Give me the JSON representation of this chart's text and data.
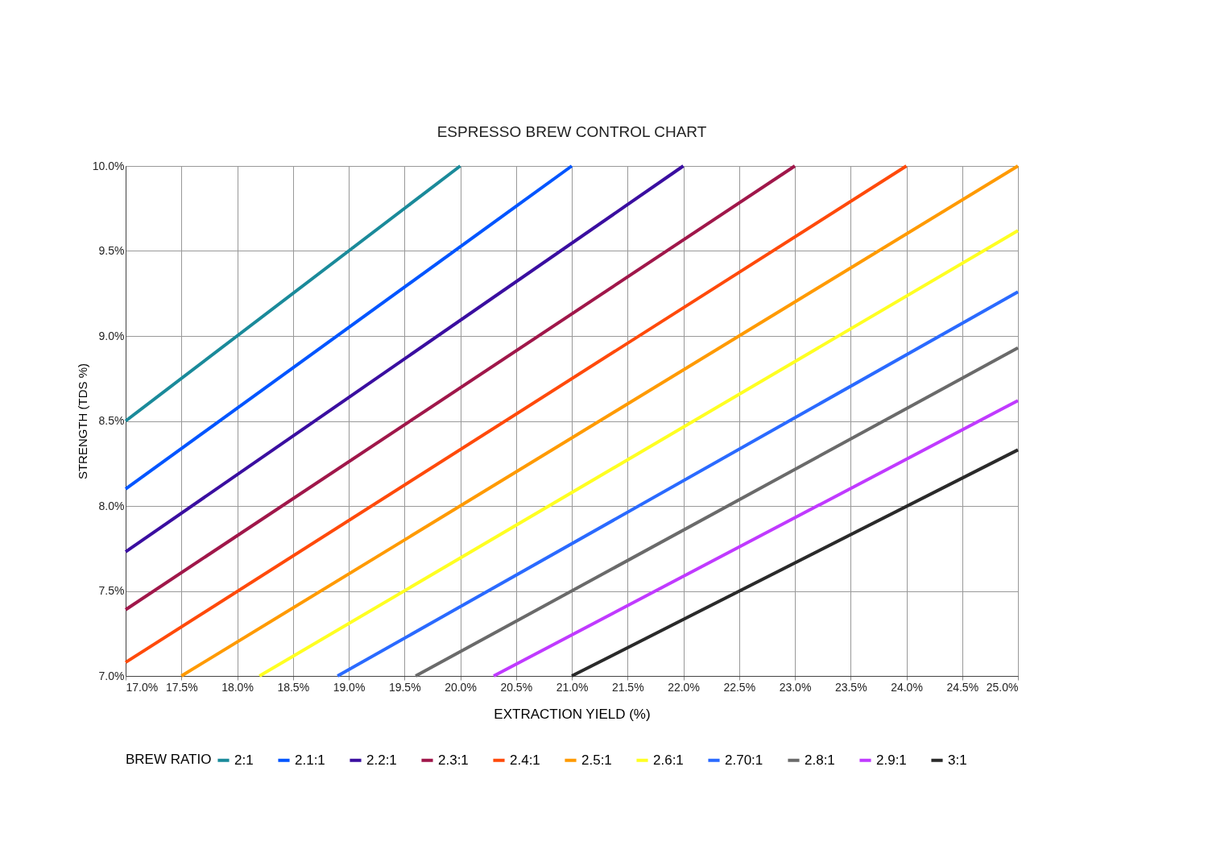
{
  "chart_data": {
    "type": "line",
    "title": "ESPRESSO BREW CONTROL CHART",
    "xlabel": "EXTRACTION YIELD (%)",
    "ylabel": "STRENGTH (TDS %)",
    "legend_title": "BREW RATIO",
    "legend": "bottom",
    "grid": true,
    "line_style": "solid",
    "marker": "none",
    "xlim": [
      17,
      25
    ],
    "ylim": [
      7,
      10
    ],
    "xticks": [
      {
        "value": 17,
        "label": "17.0%"
      },
      {
        "value": 17.5,
        "label": "17.5%"
      },
      {
        "value": 18,
        "label": "18.0%"
      },
      {
        "value": 18.5,
        "label": "18.5%"
      },
      {
        "value": 19,
        "label": "19.0%"
      },
      {
        "value": 19.5,
        "label": "19.5%"
      },
      {
        "value": 20,
        "label": "20.0%"
      },
      {
        "value": 20.5,
        "label": "20.5%"
      },
      {
        "value": 21,
        "label": "21.0%"
      },
      {
        "value": 21.5,
        "label": "21.5%"
      },
      {
        "value": 22,
        "label": "22.0%"
      },
      {
        "value": 22.5,
        "label": "22.5%"
      },
      {
        "value": 23,
        "label": "23.0%"
      },
      {
        "value": 23.5,
        "label": "23.5%"
      },
      {
        "value": 24,
        "label": "24.0%"
      },
      {
        "value": 24.5,
        "label": "24.5%"
      },
      {
        "value": 25,
        "label": "25.0%"
      }
    ],
    "yticks": [
      {
        "value": 7,
        "label": "7.0%"
      },
      {
        "value": 7.5,
        "label": "7.5%"
      },
      {
        "value": 8,
        "label": "8.0%"
      },
      {
        "value": 8.5,
        "label": "8.5%"
      },
      {
        "value": 9,
        "label": "9.0%"
      },
      {
        "value": 9.5,
        "label": "9.5%"
      },
      {
        "value": 10,
        "label": "10.0%"
      }
    ],
    "series": [
      {
        "name": "2:1",
        "color": "#1a8a9a",
        "x": [
          17,
          20
        ],
        "values": [
          8.5,
          10
        ]
      },
      {
        "name": "2.1:1",
        "color": "#0055ff",
        "x": [
          17,
          21
        ],
        "values": [
          8.1,
          10
        ]
      },
      {
        "name": "2.2:1",
        "color": "#3a0ea0",
        "x": [
          17,
          22
        ],
        "values": [
          7.73,
          10
        ]
      },
      {
        "name": "2.3:1",
        "color": "#a0174a",
        "x": [
          17,
          23
        ],
        "values": [
          7.39,
          10
        ]
      },
      {
        "name": "2.4:1",
        "color": "#ff4a0a",
        "x": [
          17,
          24
        ],
        "values": [
          7.08,
          10
        ]
      },
      {
        "name": "2.5:1",
        "color": "#ff9a00",
        "x": [
          17.5,
          25
        ],
        "values": [
          7,
          10
        ]
      },
      {
        "name": "2.6:1",
        "color": "#ffff22",
        "x": [
          18.2,
          25
        ],
        "values": [
          7,
          9.62
        ]
      },
      {
        "name": "2.70:1",
        "color": "#2a6aff",
        "x": [
          18.9,
          25
        ],
        "values": [
          7,
          9.26
        ]
      },
      {
        "name": "2.8:1",
        "color": "#6a6a6a",
        "x": [
          19.6,
          25
        ],
        "values": [
          7,
          8.93
        ]
      },
      {
        "name": "2.9:1",
        "color": "#c03aff",
        "x": [
          20.3,
          25
        ],
        "values": [
          7,
          8.62
        ]
      },
      {
        "name": "3:1",
        "color": "#2a2a2a",
        "x": [
          21,
          25
        ],
        "values": [
          7,
          8.33
        ]
      }
    ]
  }
}
